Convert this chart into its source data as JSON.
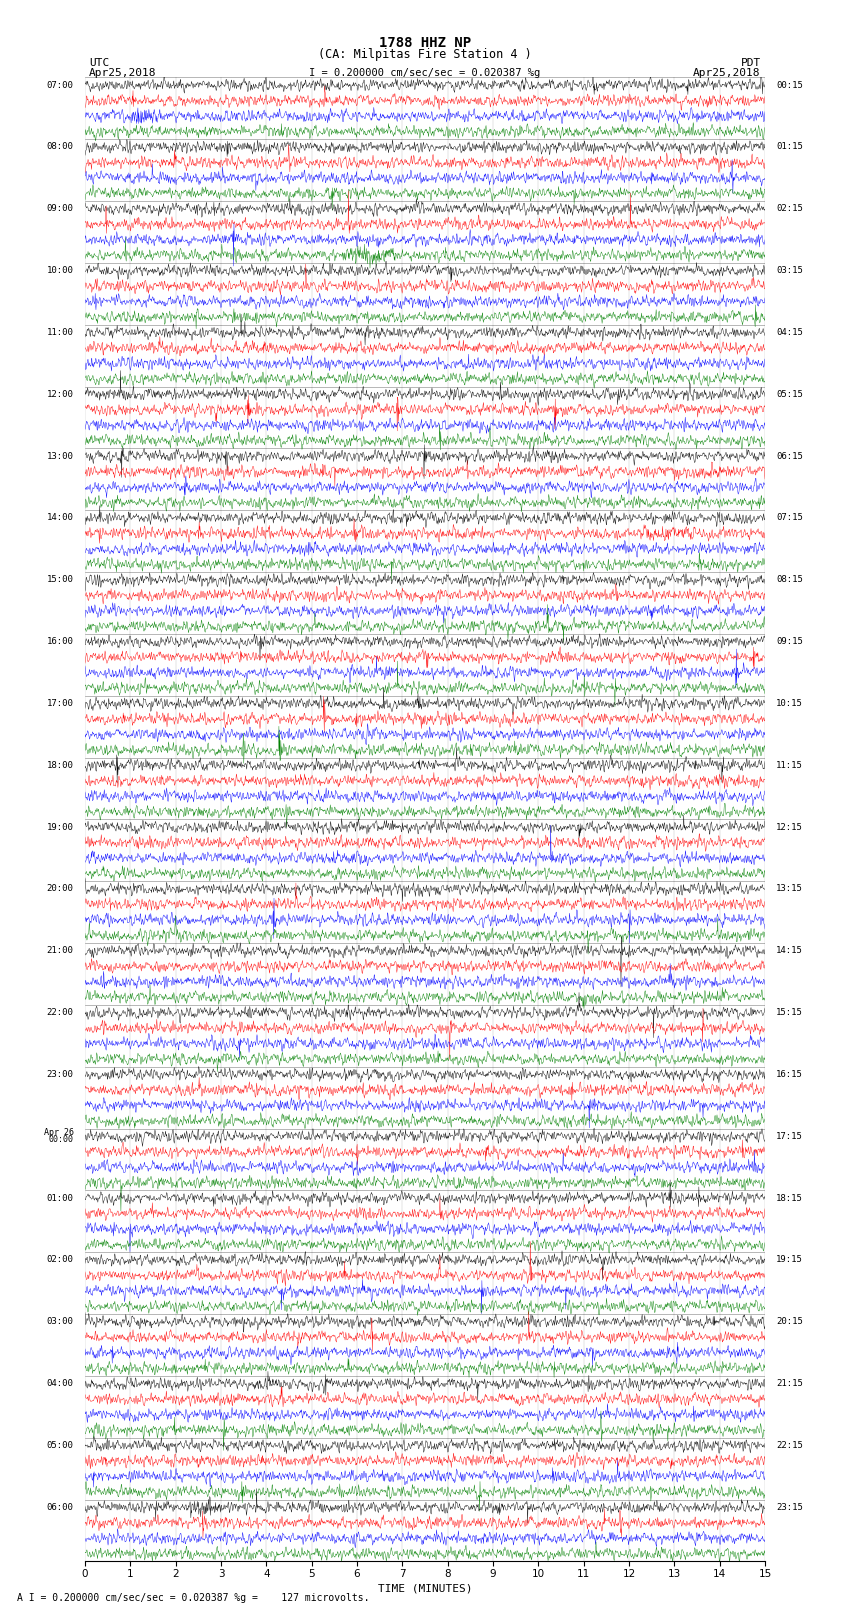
{
  "title_line1": "1788 HHZ NP",
  "title_line2": "(CA: Milpitas Fire Station 4 )",
  "scale_label": "= 0.200000 cm/sec/sec = 0.020387 %g",
  "bottom_label": "= 0.200000 cm/sec/sec = 0.020387 %g =    127 microvolts.",
  "xlabel": "TIME (MINUTES)",
  "utc_header1": "UTC",
  "utc_header2": "Apr25,2018",
  "pdt_header1": "PDT",
  "pdt_header2": "Apr25,2018",
  "num_rows": 96,
  "traces_per_row": 4,
  "colors": [
    "black",
    "red",
    "blue",
    "green"
  ],
  "x_ticks": [
    0,
    1,
    2,
    3,
    4,
    5,
    6,
    7,
    8,
    9,
    10,
    11,
    12,
    13,
    14,
    15
  ],
  "row_labels_left": [
    "07:00",
    "",
    "",
    "",
    "08:00",
    "",
    "",
    "",
    "09:00",
    "",
    "",
    "",
    "10:00",
    "",
    "",
    "",
    "11:00",
    "",
    "",
    "",
    "12:00",
    "",
    "",
    "",
    "13:00",
    "",
    "",
    "",
    "14:00",
    "",
    "",
    "",
    "15:00",
    "",
    "",
    "",
    "16:00",
    "",
    "",
    "",
    "17:00",
    "",
    "",
    "",
    "18:00",
    "",
    "",
    "",
    "19:00",
    "",
    "",
    "",
    "20:00",
    "",
    "",
    "",
    "21:00",
    "",
    "",
    "",
    "22:00",
    "",
    "",
    "",
    "23:00",
    "",
    "",
    "",
    "Apr 26\n00:00",
    "",
    "",
    "",
    "01:00",
    "",
    "",
    "",
    "02:00",
    "",
    "",
    "",
    "03:00",
    "",
    "",
    "",
    "04:00",
    "",
    "",
    "",
    "05:00",
    "",
    "",
    "",
    "06:00",
    "",
    "",
    ""
  ],
  "row_labels_right": [
    "00:15",
    "",
    "",
    "",
    "01:15",
    "",
    "",
    "",
    "02:15",
    "",
    "",
    "",
    "03:15",
    "",
    "",
    "",
    "04:15",
    "",
    "",
    "",
    "05:15",
    "",
    "",
    "",
    "06:15",
    "",
    "",
    "",
    "07:15",
    "",
    "",
    "",
    "08:15",
    "",
    "",
    "",
    "09:15",
    "",
    "",
    "",
    "10:15",
    "",
    "",
    "",
    "11:15",
    "",
    "",
    "",
    "12:15",
    "",
    "",
    "",
    "13:15",
    "",
    "",
    "",
    "14:15",
    "",
    "",
    "",
    "15:15",
    "",
    "",
    "",
    "16:15",
    "",
    "",
    "",
    "17:15",
    "",
    "",
    "",
    "18:15",
    "",
    "",
    "",
    "19:15",
    "",
    "",
    "",
    "20:15",
    "",
    "",
    "",
    "21:15",
    "",
    "",
    "",
    "22:15",
    "",
    "",
    "",
    "23:15",
    "",
    "",
    ""
  ],
  "bg_color": "white",
  "trace_linewidth": 0.3,
  "amplitude_scale": 0.28,
  "seed": 42
}
